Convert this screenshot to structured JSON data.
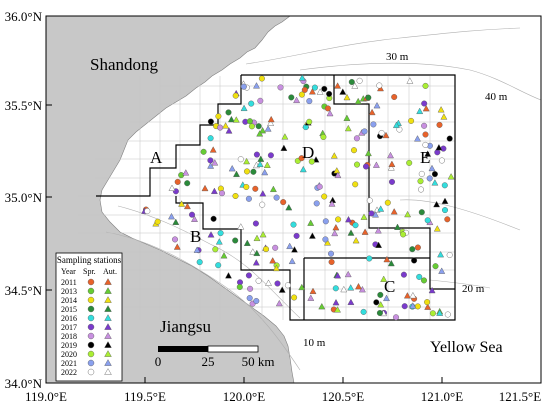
{
  "map": {
    "lat_labels": [
      "36.0°N",
      "35.5°N",
      "35.0°N",
      "34.5°N",
      "34.0°N"
    ],
    "lon_labels": [
      "119.0°E",
      "119.5°E",
      "120.0°E",
      "120.5°E",
      "121.0°E",
      "121.5°E"
    ],
    "places": {
      "shandong": "Shandong",
      "jiangsu": "Jiangsu",
      "yellow_sea": "Yellow Sea"
    },
    "depth_labels": {
      "d30": "30 m",
      "d40": "40 m",
      "d20": "20 m",
      "d10": "10 m"
    },
    "regions": [
      "A",
      "B",
      "C",
      "D",
      "E"
    ],
    "scale_bar": {
      "labels": [
        "0",
        "25",
        "50 km"
      ]
    },
    "land_color": "#c8c8c8",
    "sea_color": "#ffffff"
  },
  "legend": {
    "title": "Sampling stations",
    "headers": [
      "Year",
      "Spr.",
      "Aut."
    ],
    "years": [
      {
        "year": "2011",
        "color": "#e8622a"
      },
      {
        "year": "2013",
        "color": "#66cc33"
      },
      {
        "year": "2014",
        "color": "#f0e010"
      },
      {
        "year": "2015",
        "color": "#2a8a3a"
      },
      {
        "year": "2016",
        "color": "#33dddd"
      },
      {
        "year": "2017",
        "color": "#7a3acc"
      },
      {
        "year": "2018",
        "color": "#c890e0"
      },
      {
        "year": "2019",
        "color": "#000000"
      },
      {
        "year": "2020",
        "color": "#aaee33"
      },
      {
        "year": "2021",
        "color": "#8aa0ee"
      },
      {
        "year": "2022",
        "color": "#ffffff"
      }
    ]
  }
}
